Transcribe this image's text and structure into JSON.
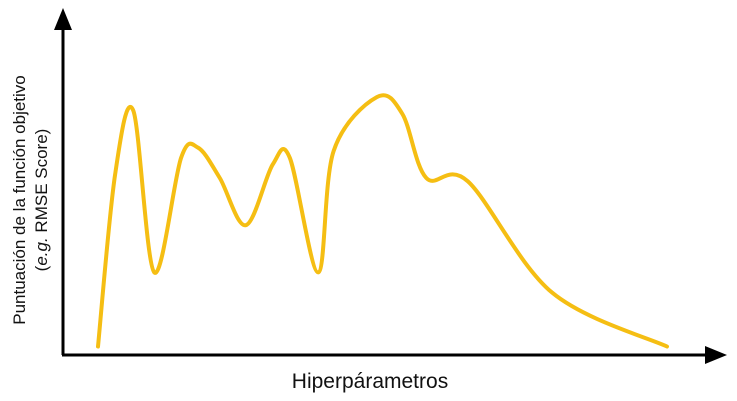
{
  "chart_data": {
    "type": "line",
    "title": "",
    "xlabel": "Hiperpárametros",
    "ylabel_line1": "Puntuación de la función objetivo",
    "ylabel_line2_italic": "e.g.",
    "ylabel_line2_rest": " RMSE Score)",
    "ylabel_line2_open": "(",
    "xlim": [
      0,
      100
    ],
    "ylim": [
      0,
      100
    ],
    "grid": false,
    "legend": "none",
    "series": [
      {
        "color": "#F5BE13",
        "x": [
          0,
          3,
          6.2,
          9.9,
          14.6,
          17.6,
          21.4,
          26,
          30.7,
          33.7,
          38.7,
          41.4,
          49,
          53.5,
          57.7,
          65,
          79.8,
          100
        ],
        "y": [
          4,
          55,
          74,
          26,
          60,
          63,
          54,
          40,
          58,
          60,
          26,
          62,
          78,
          73,
          54,
          53,
          20,
          4
        ]
      }
    ]
  }
}
